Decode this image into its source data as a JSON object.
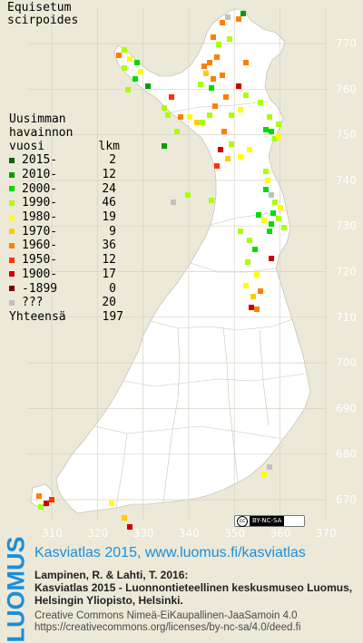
{
  "species": {
    "name_line1": "Equisetum",
    "name_line2": "scirpoides"
  },
  "legend": {
    "heading_line1": "Uusimman",
    "heading_line2": "havainnon",
    "heading_col_year": "vuosi",
    "heading_col_count": "lkm",
    "rows": [
      {
        "label": "2015-",
        "count": "2",
        "color": "#006400"
      },
      {
        "label": "2010-",
        "count": "12",
        "color": "#00a000"
      },
      {
        "label": "2000-",
        "count": "24",
        "color": "#00dd00"
      },
      {
        "label": "1990-",
        "count": "46",
        "color": "#aaff00"
      },
      {
        "label": "1980-",
        "count": "19",
        "color": "#ffff00"
      },
      {
        "label": "1970-",
        "count": "9",
        "color": "#ffcc00"
      },
      {
        "label": "1960-",
        "count": "36",
        "color": "#ff7f00"
      },
      {
        "label": "1950-",
        "count": "12",
        "color": "#ff3300"
      },
      {
        "label": "1900-",
        "count": "17",
        "color": "#cc0000"
      },
      {
        "label": "-1899",
        "count": "0",
        "color": "#800000"
      },
      {
        "label": "???",
        "count": "20",
        "color": "#c0c0c0"
      }
    ],
    "total_label": "Yhteensä",
    "total_count": "197"
  },
  "grid": {
    "y_labels": [
      "770",
      "760",
      "750",
      "740",
      "730",
      "720",
      "710",
      "700",
      "690",
      "680",
      "670"
    ],
    "x_labels": [
      "310",
      "320",
      "330",
      "340",
      "350",
      "360",
      "370"
    ]
  },
  "cc_badge": {
    "symbol": "cc",
    "text": "BY-NC-SA"
  },
  "footer": {
    "logo": "LUOMUS",
    "atlas_title": "Kasviatlas 2015, www.luomus.fi/kasviatlas",
    "citation_line1": "Lampinen, R. & Lahti, T. 2016:",
    "citation_line2": "Kasviatlas 2015 - Luonnontieteellinen keskusmuseo Luomus,",
    "citation_line3": "Helsingin Yliopisto, Helsinki.",
    "license_line1": "Creative Commons Nimeä-EiKaupallinen-JaaSamoin 4.0",
    "license_line2": "https://creativecommons.org/licenses/by-nc-sa/4.0/deed.fi"
  },
  "colors": {
    "background": "#ece9d8",
    "land": "#ffffff",
    "grid": "#d6d2c4",
    "accent": "#1a8fd9"
  }
}
